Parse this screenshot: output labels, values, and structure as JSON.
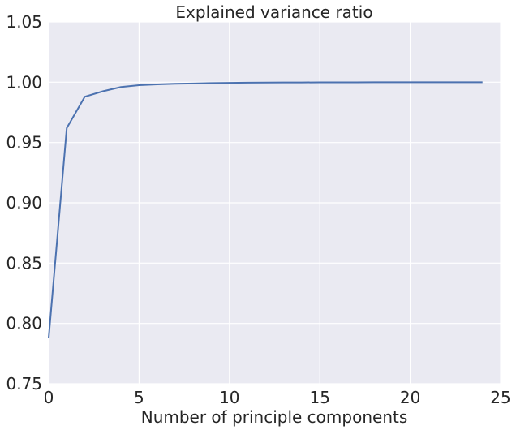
{
  "chart_data": {
    "type": "line",
    "title": "Explained variance ratio",
    "xlabel": "Number of principle components",
    "ylabel": "",
    "xlim": [
      0,
      25
    ],
    "ylim": [
      0.75,
      1.05
    ],
    "xticks": [
      0,
      5,
      10,
      15,
      20,
      25
    ],
    "xtick_labels": [
      "0",
      "5",
      "10",
      "15",
      "20",
      "25"
    ],
    "yticks": [
      0.75,
      0.8,
      0.85,
      0.9,
      0.95,
      1.0,
      1.05
    ],
    "ytick_labels": [
      "0.75",
      "0.80",
      "0.85",
      "0.90",
      "0.95",
      "1.00",
      "1.05"
    ],
    "grid": true,
    "style": {
      "background": "#eaeaf2",
      "grid_color": "#ffffff",
      "line_color": "#4c72b0"
    },
    "series": [
      {
        "x": [
          0,
          1,
          2,
          3,
          4,
          5,
          6,
          7,
          8,
          9,
          10,
          11,
          12,
          13,
          14,
          15,
          16,
          17,
          18,
          19,
          20,
          21,
          22,
          23,
          24
        ],
        "values": [
          0.788,
          0.962,
          0.988,
          0.9925,
          0.996,
          0.9975,
          0.9982,
          0.9987,
          0.999,
          0.9993,
          0.9995,
          0.9996,
          0.9997,
          0.9998,
          0.9998,
          0.9999,
          0.9999,
          0.9999,
          1.0,
          1.0,
          1.0,
          1.0,
          1.0,
          1.0,
          1.0
        ]
      }
    ]
  }
}
